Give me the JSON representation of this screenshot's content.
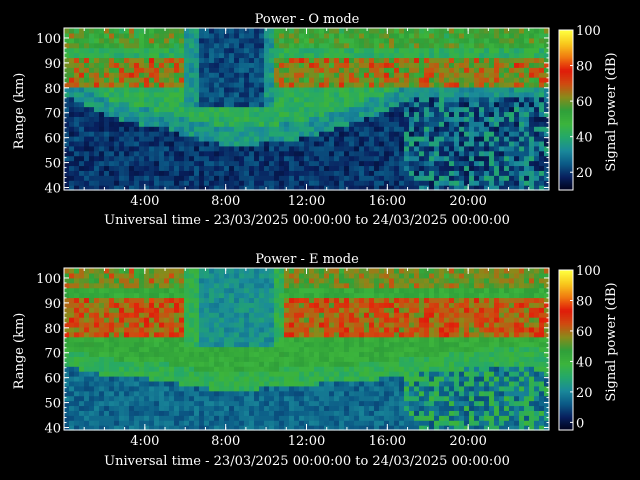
{
  "panels": [
    {
      "title": "Power - O mode",
      "ylabel": "Range (km)",
      "xlabel": "Universal time - 23/03/2025 00:00:00 to 24/03/2025 00:00:00",
      "colorbar_label": "Signal power (dB)",
      "y_ticks": [
        "40",
        "50",
        "60",
        "70",
        "80",
        "90",
        "100"
      ],
      "x_ticks": [
        "4:00",
        "8:00",
        "12:00",
        "16:00",
        "20:00"
      ],
      "cbar_ticks": [
        "20",
        "40",
        "60",
        "80",
        "100"
      ]
    },
    {
      "title": "Power - E mode",
      "ylabel": "Range (km)",
      "xlabel": "Universal time - 23/03/2025 00:00:00 to 24/03/2025 00:00:00",
      "colorbar_label": "Signal power (dB)",
      "y_ticks": [
        "40",
        "50",
        "60",
        "70",
        "80",
        "90",
        "100"
      ],
      "x_ticks": [
        "4:00",
        "8:00",
        "12:00",
        "16:00",
        "20:00"
      ],
      "cbar_ticks": [
        "0",
        "20",
        "40",
        "60",
        "80",
        "100"
      ]
    }
  ],
  "chart_data": [
    {
      "type": "heatmap",
      "title": "Power - O mode",
      "xlabel": "Universal time - 23/03/2025 00:00:00 to 24/03/2025 00:00:00",
      "ylabel": "Range (km)",
      "x_unit": "hours UT",
      "xlim": [
        0,
        24
      ],
      "ylim": [
        39,
        104
      ],
      "x_ticks": [
        4,
        8,
        12,
        16,
        20
      ],
      "y_ticks": [
        40,
        50,
        60,
        70,
        80,
        90,
        100
      ],
      "colorbar": {
        "label": "Signal power (dB)",
        "range": [
          10,
          100
        ],
        "ticks": [
          20,
          40,
          60,
          80,
          100
        ]
      },
      "boundary_km": [
        [
          0,
          80
        ],
        [
          1,
          76
        ],
        [
          2,
          72
        ],
        [
          3,
          70
        ],
        [
          4,
          68
        ],
        [
          5,
          67
        ],
        [
          6,
          64
        ],
        [
          7,
          62
        ],
        [
          8,
          60
        ],
        [
          9,
          60
        ],
        [
          10,
          61
        ],
        [
          11,
          62
        ],
        [
          12,
          63
        ],
        [
          13,
          66
        ],
        [
          14,
          68
        ],
        [
          15,
          71
        ],
        [
          16,
          74
        ],
        [
          17,
          78
        ],
        [
          18,
          79
        ],
        [
          19,
          78
        ],
        [
          20,
          79
        ],
        [
          21,
          80
        ],
        [
          22,
          79
        ],
        [
          23,
          80
        ],
        [
          24,
          80
        ]
      ],
      "strong_band_km": [
        80,
        92
      ],
      "dark_region": {
        "x": [
          6,
          10.5
        ],
        "y": [
          72,
          104
        ]
      },
      "noise_floor_db": 15,
      "peak_db": 90
    },
    {
      "type": "heatmap",
      "title": "Power - E mode",
      "xlabel": "Universal time - 23/03/2025 00:00:00 to 24/03/2025 00:00:00",
      "ylabel": "Range (km)",
      "x_unit": "hours UT",
      "xlim": [
        0,
        24
      ],
      "ylim": [
        39,
        104
      ],
      "x_ticks": [
        4,
        8,
        12,
        16,
        20
      ],
      "y_ticks": [
        40,
        50,
        60,
        70,
        80,
        90,
        100
      ],
      "colorbar": {
        "label": "Signal power (dB)",
        "range": [
          -5,
          100
        ],
        "ticks": [
          0,
          20,
          40,
          60,
          80,
          100
        ]
      },
      "boundary_km": [
        [
          0,
          68
        ],
        [
          1,
          66
        ],
        [
          2,
          64
        ],
        [
          3,
          63
        ],
        [
          4,
          63
        ],
        [
          5,
          62
        ],
        [
          6,
          60
        ],
        [
          7,
          59
        ],
        [
          8,
          58
        ],
        [
          9,
          58
        ],
        [
          10,
          59
        ],
        [
          11,
          60
        ],
        [
          12,
          60
        ],
        [
          13,
          61
        ],
        [
          14,
          61
        ],
        [
          15,
          62
        ],
        [
          16,
          63
        ],
        [
          17,
          64
        ],
        [
          18,
          65
        ],
        [
          19,
          66
        ],
        [
          20,
          67
        ],
        [
          21,
          68
        ],
        [
          22,
          68
        ],
        [
          23,
          68
        ],
        [
          24,
          68
        ]
      ],
      "strong_band_km": [
        76,
        92
      ],
      "dark_region": {
        "x": [
          6,
          11
        ],
        "y": [
          72,
          104
        ]
      },
      "noise_floor_db": 10,
      "peak_db": 85
    }
  ],
  "colors": {
    "background": "#000000",
    "text": "#ffffff",
    "colormap": [
      "#000018",
      "#08205e",
      "#0b5a86",
      "#1a8a9a",
      "#24a86a",
      "#3cb43c",
      "#2f9f3a",
      "#8a8a1a",
      "#d04a10",
      "#e01a0a",
      "#f07a10",
      "#f8c81c",
      "#ffff40"
    ]
  }
}
